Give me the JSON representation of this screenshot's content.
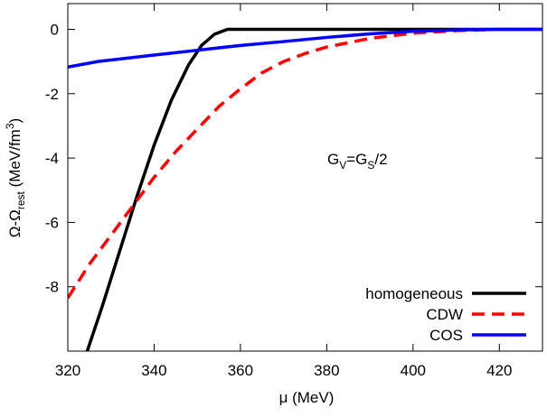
{
  "chart_data": {
    "type": "line",
    "xlabel": "μ (MeV)",
    "ylabel": {
      "main": "Ω-Ω",
      "sub": "rest",
      "unit": " (MeV/fm",
      "sup": "3",
      "end": ")"
    },
    "annotation": {
      "g1": "G",
      "s1": "V",
      "mid": "=G",
      "s2": "S",
      "end": "/2"
    },
    "xlim": [
      320,
      430
    ],
    "xticks": [
      320,
      340,
      360,
      380,
      400,
      420
    ],
    "ylim": [
      -10,
      0.8
    ],
    "yticks": [
      0,
      -2,
      -4,
      -6,
      -8
    ],
    "legend": "bottom-right",
    "series": [
      {
        "name": "homogeneous",
        "color": "#000000",
        "dashed": false,
        "x": [
          324.5,
          328,
          332,
          336,
          340,
          344,
          348,
          351,
          354,
          357,
          430
        ],
        "values": [
          -10,
          -8.6,
          -6.9,
          -5.2,
          -3.6,
          -2.2,
          -1.1,
          -0.5,
          -0.15,
          0,
          0
        ]
      },
      {
        "name": "CDW",
        "color": "#ff0000",
        "dashed": true,
        "x": [
          320,
          325,
          330,
          335,
          340,
          345,
          350,
          355,
          360,
          365,
          370,
          375,
          380,
          390,
          400,
          410,
          420,
          430
        ],
        "values": [
          -8.35,
          -7.3,
          -6.4,
          -5.5,
          -4.6,
          -3.8,
          -3.1,
          -2.4,
          -1.85,
          -1.35,
          -1.0,
          -0.75,
          -0.55,
          -0.28,
          -0.12,
          -0.04,
          0,
          0
        ]
      },
      {
        "name": "COS",
        "color": "#0000ff",
        "dashed": false,
        "x": [
          320,
          327,
          340,
          350,
          360,
          370,
          380,
          390,
          400,
          410,
          420,
          430
        ],
        "values": [
          -1.17,
          -1.0,
          -0.8,
          -0.65,
          -0.5,
          -0.38,
          -0.25,
          -0.14,
          -0.06,
          -0.02,
          0,
          0
        ]
      }
    ]
  }
}
